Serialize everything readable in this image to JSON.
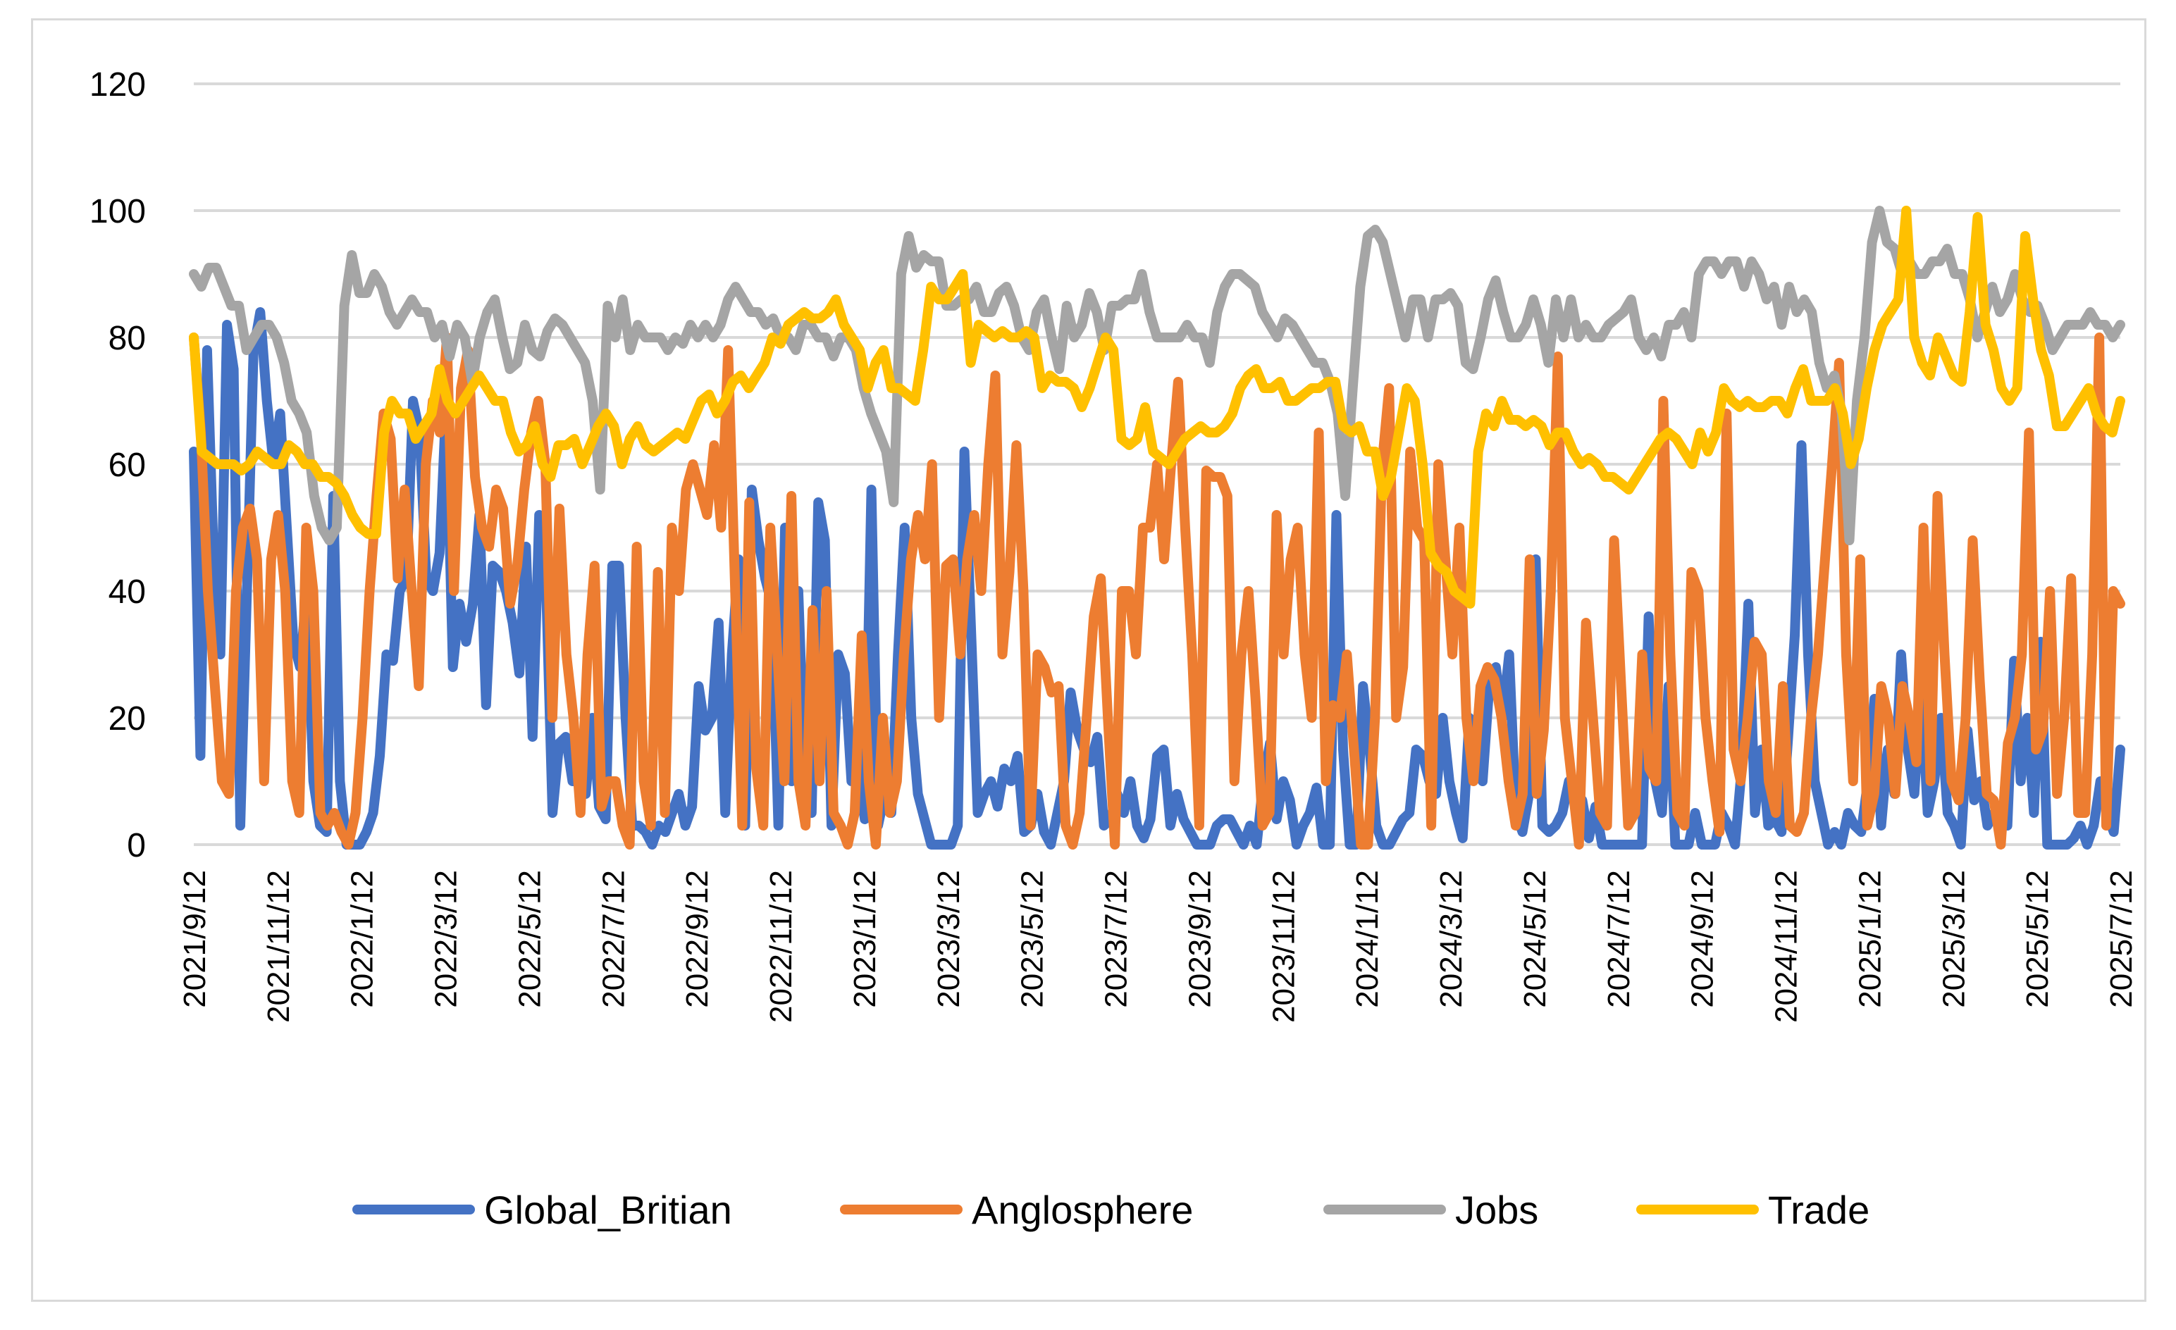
{
  "chart_data": {
    "type": "line",
    "title": "",
    "xlabel": "",
    "ylabel": "",
    "ylim": [
      0,
      120
    ],
    "y_ticks": [
      0,
      20,
      40,
      60,
      80,
      100,
      120
    ],
    "grid": true,
    "legend_position": "bottom",
    "x_tick_labels": [
      "2021/9/12",
      "2021/11/12",
      "2022/1/12",
      "2022/3/12",
      "2022/5/12",
      "2022/7/12",
      "2022/9/12",
      "2022/11/12",
      "2023/1/12",
      "2023/3/12",
      "2023/5/12",
      "2023/7/12",
      "2023/9/12",
      "2023/11/12",
      "2024/1/12",
      "2024/3/12",
      "2024/5/12",
      "2024/7/12",
      "2024/9/12",
      "2024/11/12",
      "2025/1/12",
      "2025/3/12",
      "2025/5/12",
      "2025/7/12"
    ],
    "series": [
      {
        "name": "Global_Britian",
        "color": "#4472C4",
        "values": [
          62,
          14,
          78,
          45,
          30,
          82,
          75,
          3,
          40,
          78,
          84,
          70,
          60,
          68,
          50,
          32,
          28,
          40,
          10,
          3,
          2,
          55,
          10,
          0,
          0,
          0,
          2,
          5,
          14,
          30,
          29,
          40,
          42,
          70,
          65,
          42,
          40,
          46,
          70,
          28,
          38,
          32,
          38,
          52,
          22,
          44,
          43,
          40,
          35,
          27,
          47,
          17,
          52,
          42,
          5,
          16,
          17,
          10,
          10,
          8,
          20,
          6,
          4,
          44,
          44,
          20,
          3,
          3,
          2,
          0,
          3,
          2,
          5,
          8,
          3,
          6,
          25,
          18,
          20,
          35,
          5,
          30,
          45,
          3,
          56,
          48,
          42,
          38,
          3,
          50,
          10,
          40,
          10,
          5,
          54,
          48,
          3,
          30,
          27,
          10,
          12,
          4,
          56,
          3,
          8,
          5,
          30,
          50,
          20,
          8,
          4,
          0,
          0,
          0,
          0,
          3,
          62,
          34,
          5,
          8,
          10,
          6,
          12,
          10,
          14,
          2,
          3,
          8,
          2,
          0,
          5,
          10,
          24,
          18,
          15,
          13,
          17,
          3,
          4,
          8,
          5,
          10,
          3,
          1,
          4,
          14,
          15,
          3,
          8,
          4,
          2,
          0,
          0,
          0,
          3,
          4,
          4,
          2,
          0,
          3,
          0,
          10,
          16,
          4,
          10,
          7,
          0,
          3,
          5,
          9,
          0,
          0,
          52,
          15,
          0,
          0,
          25,
          15,
          3,
          0,
          0,
          2,
          4,
          5,
          15,
          14,
          10,
          8,
          20,
          10,
          5,
          1,
          20,
          12,
          10,
          25,
          28,
          20,
          30,
          5,
          2,
          8,
          45,
          3,
          2,
          3,
          5,
          10,
          8,
          7,
          1,
          6,
          0,
          0,
          0,
          0,
          0,
          0,
          0,
          36,
          10,
          5,
          25,
          0,
          0,
          0,
          5,
          0,
          0,
          0,
          5,
          3,
          0,
          12,
          38,
          5,
          15,
          3,
          4,
          2,
          17,
          33,
          63,
          30,
          10,
          5,
          0,
          2,
          0,
          5,
          3,
          2,
          10,
          23,
          3,
          15,
          8,
          30,
          15,
          8,
          25,
          5,
          10,
          20,
          5,
          3,
          0,
          18,
          7,
          10,
          3,
          5,
          5,
          3,
          29,
          10,
          20,
          5,
          32,
          0,
          0,
          0,
          0,
          1,
          3,
          0,
          3,
          10,
          5,
          2,
          15
        ]
      },
      {
        "name": "Anglosphere",
        "color": "#ED7D31",
        "values": [
          80,
          65,
          40,
          25,
          10,
          8,
          40,
          50,
          53,
          45,
          10,
          45,
          52,
          40,
          10,
          5,
          50,
          40,
          5,
          3,
          5,
          2,
          0,
          5,
          20,
          40,
          55,
          68,
          64,
          42,
          56,
          40,
          25,
          60,
          70,
          65,
          80,
          40,
          72,
          78,
          58,
          50,
          47,
          56,
          53,
          38,
          44,
          56,
          65,
          70,
          60,
          20,
          53,
          30,
          20,
          5,
          30,
          44,
          6,
          10,
          10,
          3,
          0,
          47,
          10,
          3,
          43,
          5,
          50,
          40,
          56,
          60,
          56,
          52,
          63,
          50,
          78,
          40,
          3,
          54,
          12,
          3,
          50,
          30,
          10,
          55,
          10,
          3,
          37,
          10,
          40,
          5,
          3,
          0,
          5,
          33,
          10,
          0,
          20,
          5,
          10,
          30,
          45,
          52,
          45,
          60,
          20,
          44,
          45,
          30,
          45,
          52,
          40,
          60,
          74,
          30,
          43,
          63,
          40,
          3,
          30,
          28,
          24,
          25,
          3,
          0,
          5,
          20,
          36,
          42,
          20,
          0,
          40,
          40,
          30,
          50,
          50,
          60,
          45,
          60,
          73,
          50,
          30,
          3,
          59,
          58,
          58,
          55,
          10,
          30,
          40,
          23,
          3,
          5,
          52,
          30,
          45,
          50,
          30,
          20,
          65,
          10,
          22,
          20,
          30,
          15,
          0,
          0,
          20,
          60,
          72,
          20,
          28,
          62,
          50,
          48,
          3,
          60,
          45,
          30,
          50,
          20,
          10,
          25,
          28,
          26,
          20,
          10,
          3,
          8,
          45,
          8,
          18,
          40,
          77,
          20,
          10,
          0,
          35,
          20,
          5,
          3,
          48,
          25,
          3,
          5,
          30,
          12,
          10,
          70,
          30,
          5,
          3,
          43,
          40,
          20,
          10,
          2,
          68,
          15,
          10,
          20,
          32,
          30,
          10,
          5,
          25,
          3,
          2,
          5,
          20,
          30,
          45,
          60,
          76,
          30,
          10,
          45,
          3,
          8,
          25,
          20,
          8,
          25,
          20,
          13,
          50,
          10,
          55,
          30,
          10,
          7,
          20,
          48,
          26,
          8,
          7,
          0,
          16,
          20,
          30,
          65,
          15,
          18,
          40,
          8,
          20,
          42,
          5,
          5,
          30,
          80,
          3,
          40,
          38
        ]
      },
      {
        "name": "Jobs",
        "color": "#A5A5A5",
        "values": [
          90,
          88,
          91,
          91,
          88,
          85,
          85,
          78,
          80,
          82,
          82,
          80,
          76,
          70,
          68,
          65,
          55,
          50,
          48,
          50,
          85,
          93,
          87,
          87,
          90,
          88,
          84,
          82,
          84,
          86,
          84,
          84,
          80,
          82,
          77,
          82,
          80,
          73,
          80,
          84,
          86,
          80,
          75,
          76,
          82,
          78,
          77,
          81,
          83,
          82,
          80,
          78,
          76,
          70,
          56,
          85,
          80,
          86,
          78,
          82,
          80,
          80,
          80,
          78,
          80,
          79,
          82,
          80,
          82,
          80,
          82,
          86,
          88,
          86,
          84,
          84,
          82,
          83,
          80,
          80,
          78,
          82,
          82,
          80,
          80,
          77,
          80,
          80,
          78,
          72,
          68,
          65,
          62,
          54,
          90,
          96,
          91,
          93,
          92,
          92,
          85,
          85,
          86,
          86,
          88,
          84,
          84,
          87,
          88,
          85,
          80,
          78,
          84,
          86,
          80,
          75,
          85,
          80,
          82,
          87,
          84,
          78,
          85,
          85,
          86,
          86,
          90,
          84,
          80,
          80,
          80,
          80,
          82,
          80,
          80,
          76,
          84,
          88,
          90,
          90,
          89,
          88,
          84,
          82,
          80,
          83,
          82,
          80,
          78,
          76,
          76,
          73,
          68,
          55,
          72,
          88,
          96,
          97,
          95,
          90,
          85,
          80,
          86,
          86,
          80,
          86,
          86,
          87,
          85,
          76,
          75,
          80,
          86,
          89,
          84,
          80,
          80,
          82,
          86,
          82,
          76,
          86,
          80,
          86,
          80,
          82,
          80,
          80,
          82,
          83,
          84,
          86,
          80,
          78,
          80,
          77,
          82,
          82,
          84,
          80,
          90,
          92,
          92,
          90,
          92,
          92,
          88,
          92,
          90,
          86,
          88,
          82,
          88,
          84,
          86,
          84,
          76,
          72,
          74,
          68,
          48,
          70,
          80,
          95,
          100,
          95,
          94,
          90,
          92,
          90,
          90,
          92,
          92,
          94,
          90,
          90,
          86,
          80,
          84,
          88,
          84,
          86,
          90,
          86,
          84,
          85,
          82,
          78,
          80,
          82,
          82,
          82,
          84,
          82,
          82,
          80,
          82
        ]
      },
      {
        "name": "Trade",
        "color": "#FFC000",
        "values": [
          80,
          62,
          61,
          60,
          60,
          60,
          59,
          60,
          62,
          61,
          60,
          60,
          63,
          62,
          60,
          60,
          58,
          58,
          57,
          55,
          52,
          50,
          49,
          49,
          65,
          70,
          68,
          68,
          64,
          66,
          68,
          75,
          70,
          68,
          70,
          72,
          74,
          72,
          70,
          70,
          65,
          62,
          63,
          66,
          60,
          58,
          63,
          63,
          64,
          60,
          63,
          66,
          68,
          66,
          60,
          64,
          66,
          63,
          62,
          63,
          64,
          65,
          64,
          67,
          70,
          71,
          68,
          70,
          73,
          74,
          72,
          74,
          76,
          80,
          79,
          82,
          83,
          84,
          83,
          83,
          84,
          86,
          82,
          80,
          78,
          72,
          76,
          78,
          72,
          72,
          71,
          70,
          78,
          88,
          86,
          86,
          88,
          90,
          76,
          82,
          81,
          80,
          81,
          80,
          80,
          81,
          80,
          72,
          74,
          73,
          73,
          72,
          69,
          72,
          76,
          80,
          78,
          64,
          63,
          64,
          69,
          62,
          61,
          60,
          62,
          64,
          65,
          66,
          65,
          65,
          66,
          68,
          72,
          74,
          75,
          72,
          72,
          73,
          70,
          70,
          71,
          72,
          72,
          73,
          73,
          66,
          65,
          66,
          62,
          62,
          55,
          58,
          65,
          72,
          70,
          60,
          46,
          44,
          43,
          40,
          39,
          38,
          62,
          68,
          66,
          70,
          67,
          67,
          66,
          67,
          66,
          63,
          65,
          65,
          62,
          60,
          61,
          60,
          58,
          58,
          57,
          56,
          58,
          60,
          62,
          64,
          65,
          64,
          62,
          60,
          65,
          62,
          65,
          72,
          70,
          69,
          70,
          69,
          69,
          70,
          70,
          68,
          72,
          75,
          70,
          70,
          70,
          72,
          68,
          60,
          64,
          72,
          78,
          82,
          84,
          86,
          100,
          80,
          76,
          74,
          80,
          77,
          74,
          73,
          84,
          99,
          82,
          78,
          72,
          70,
          72,
          96,
          86,
          78,
          74,
          66,
          66,
          68,
          70,
          72,
          68,
          66,
          65,
          70
        ]
      }
    ]
  }
}
